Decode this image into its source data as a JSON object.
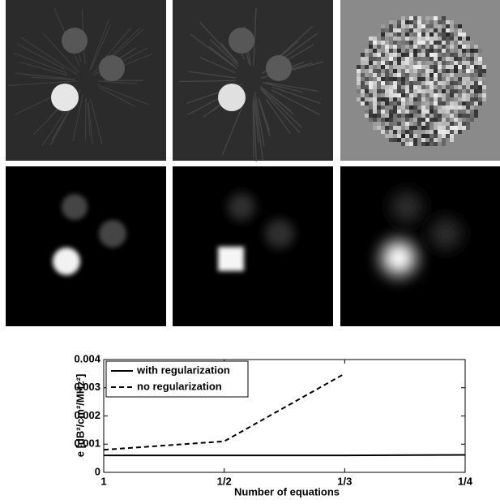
{
  "chart_data": {
    "type": "line",
    "categories": [
      "1",
      "1/2",
      "1/3",
      "1/4"
    ],
    "series": [
      {
        "name": "with regularization",
        "color": "#000000",
        "dash": false,
        "values": [
          0.0006,
          0.0006,
          0.0006,
          0.00062
        ]
      },
      {
        "name": "no regularization",
        "color": "#000000",
        "dash": true,
        "values": [
          0.0008,
          0.0011,
          0.0035,
          null
        ]
      }
    ],
    "ylim": [
      0,
      0.004
    ],
    "yticks": [
      0,
      0.001,
      0.002,
      0.003,
      0.004
    ],
    "xlabel": "Number of equations",
    "ylabel": "e [dB²/cm²/MHz²]",
    "legend": "upper left",
    "grid": false
  }
}
